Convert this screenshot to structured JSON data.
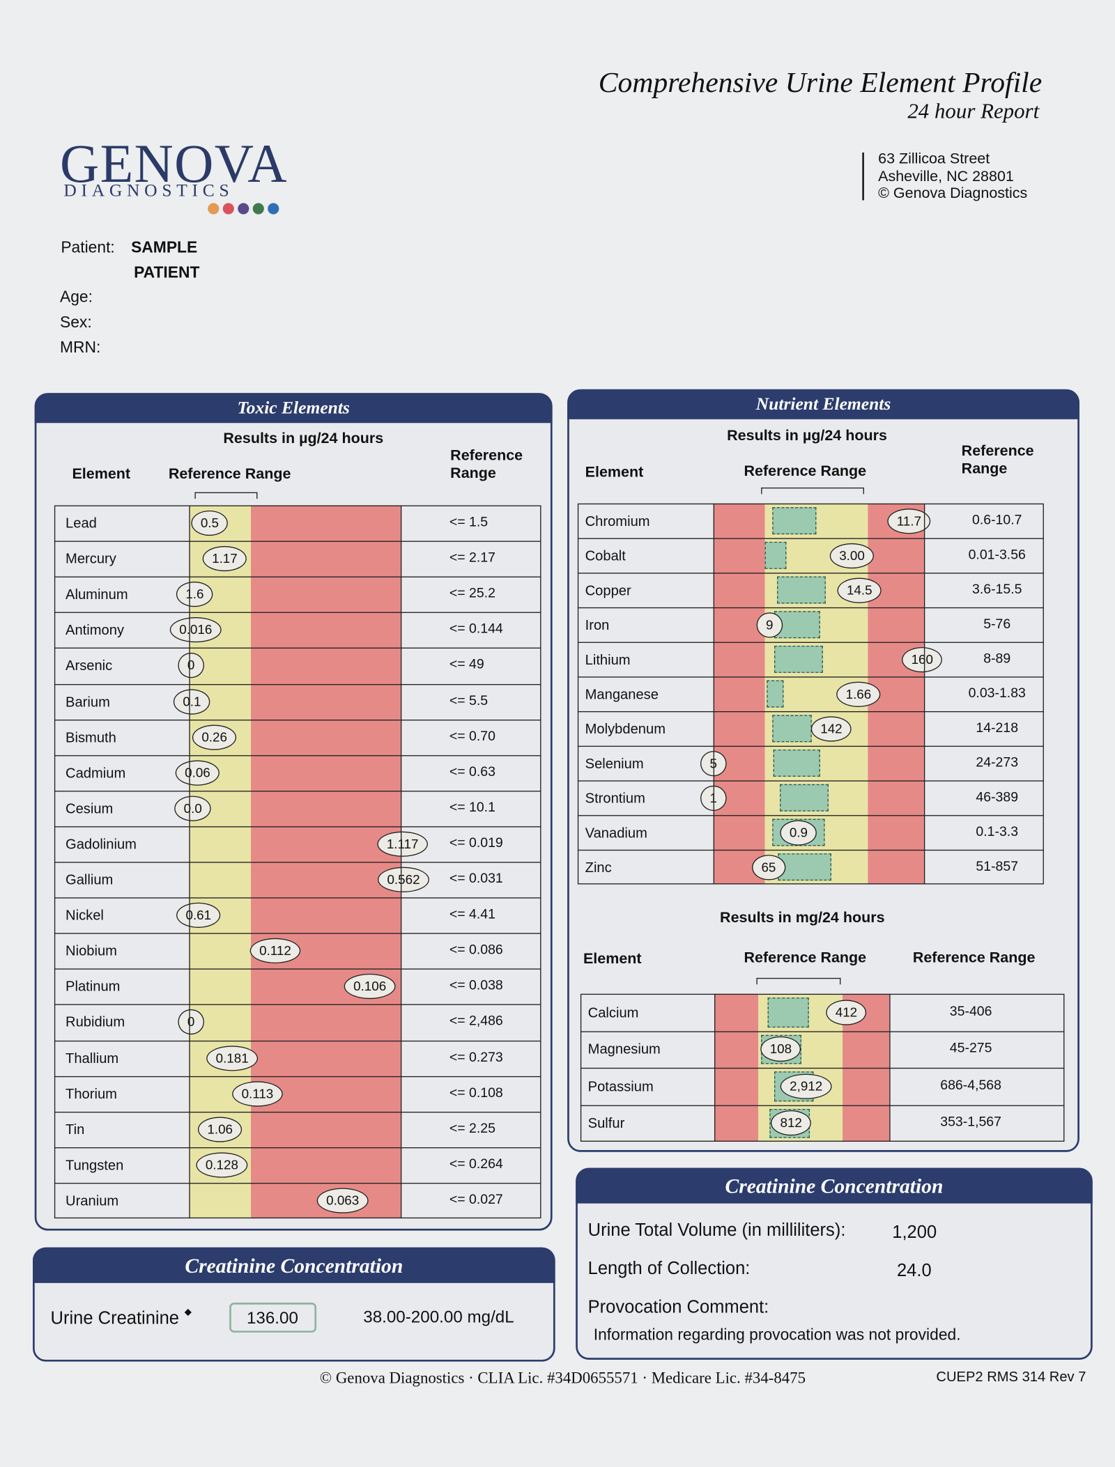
{
  "header": {
    "title": "Comprehensive Urine Element Profile",
    "subtitle": "24 hour Report",
    "logo": {
      "name": "GENOVA",
      "tagline": "DIAGNOSTICS"
    },
    "address": [
      "63 Zillicoa Street",
      "Asheville, NC  28801",
      "© Genova Diagnostics"
    ]
  },
  "patient": {
    "label": "Patient:",
    "name_lines": [
      "SAMPLE",
      "PATIENT"
    ],
    "fields": [
      "Age:",
      "Sex:",
      "MRN:"
    ]
  },
  "toxic": {
    "title": "Toxic Elements",
    "units": "Results in µg/24 hours",
    "columns": {
      "element": "Element",
      "range": "Reference Range",
      "reference": "Reference Range"
    },
    "rows": [
      {
        "element": "Lead",
        "result": "0.5",
        "reference": "<= 1.5"
      },
      {
        "element": "Mercury",
        "result": "1.17",
        "reference": "<= 2.17"
      },
      {
        "element": "Aluminum",
        "result": "1.6",
        "reference": "<= 25.2"
      },
      {
        "element": "Antimony",
        "result": "0.016",
        "reference": "<= 0.144"
      },
      {
        "element": "Arsenic",
        "result": "0",
        "reference": "<= 49"
      },
      {
        "element": "Barium",
        "result": "0.1",
        "reference": "<= 5.5"
      },
      {
        "element": "Bismuth",
        "result": "0.26",
        "reference": "<= 0.70"
      },
      {
        "element": "Cadmium",
        "result": "0.06",
        "reference": "<= 0.63"
      },
      {
        "element": "Cesium",
        "result": "0.0",
        "reference": "<= 10.1"
      },
      {
        "element": "Gadolinium",
        "result": "1.117",
        "reference": "<= 0.019"
      },
      {
        "element": "Gallium",
        "result": "0.562",
        "reference": "<= 0.031"
      },
      {
        "element": "Nickel",
        "result": "0.61",
        "reference": "<= 4.41"
      },
      {
        "element": "Niobium",
        "result": "0.112",
        "reference": "<= 0.086"
      },
      {
        "element": "Platinum",
        "result": "0.106",
        "reference": "<= 0.038"
      },
      {
        "element": "Rubidium",
        "result": "0",
        "reference": "<= 2,486"
      },
      {
        "element": "Thallium",
        "result": "0.181",
        "reference": "<= 0.273"
      },
      {
        "element": "Thorium",
        "result": "0.113",
        "reference": "<= 0.108"
      },
      {
        "element": "Tin",
        "result": "1.06",
        "reference": "<= 2.25"
      },
      {
        "element": "Tungsten",
        "result": "0.128",
        "reference": "<= 0.264"
      },
      {
        "element": "Uranium",
        "result": "0.063",
        "reference": "<= 0.027"
      }
    ]
  },
  "nutrient": {
    "title": "Nutrient Elements",
    "units": "Results in µg/24 hours",
    "columns": {
      "element": "Element",
      "range": "Reference Range",
      "reference": "Reference Range"
    },
    "rows": [
      {
        "element": "Chromium",
        "result": "11.7",
        "reference": "0.6-10.7"
      },
      {
        "element": "Cobalt",
        "result": "3.00",
        "reference": "0.01-3.56"
      },
      {
        "element": "Copper",
        "result": "14.5",
        "reference": "3.6-15.5"
      },
      {
        "element": "Iron",
        "result": "9",
        "reference": "5-76"
      },
      {
        "element": "Lithium",
        "result": "160",
        "reference": "8-89"
      },
      {
        "element": "Manganese",
        "result": "1.66",
        "reference": "0.03-1.83"
      },
      {
        "element": "Molybdenum",
        "result": "142",
        "reference": "14-218"
      },
      {
        "element": "Selenium",
        "result": "5",
        "reference": "24-273"
      },
      {
        "element": "Strontium",
        "result": "1",
        "reference": "46-389"
      },
      {
        "element": "Vanadium",
        "result": "0.9",
        "reference": "0.1-3.3"
      },
      {
        "element": "Zinc",
        "result": "65",
        "reference": "51-857"
      }
    ],
    "mg": {
      "units": "Results in mg/24 hours",
      "columns": {
        "element": "Element",
        "range": "Reference Range",
        "reference": "Reference Range"
      },
      "rows": [
        {
          "element": "Calcium",
          "result": "412",
          "reference": "35-406"
        },
        {
          "element": "Magnesium",
          "result": "108",
          "reference": "45-275"
        },
        {
          "element": "Potassium",
          "result": "2,912",
          "reference": "686-4,568"
        },
        {
          "element": "Sulfur",
          "result": "812",
          "reference": "353-1,567"
        }
      ]
    }
  },
  "creatinine_left": {
    "title": "Creatinine Concentration",
    "label": "Urine Creatinine",
    "mark": "◆",
    "value": "136.00",
    "range": "38.00-200.00 mg/dL"
  },
  "creatinine_right": {
    "title": "Creatinine Concentration",
    "items": [
      {
        "label": "Urine Total Volume (in milliliters):",
        "value": "1,200"
      },
      {
        "label": "Length of Collection:",
        "value": "24.0"
      }
    ],
    "comment_label": "Provocation Comment:",
    "comment": "Information regarding provocation was not provided."
  },
  "footer": {
    "text": "© Genova Diagnostics · CLIA Lic. #34D0655571 · Medicare Lic. #34-8475",
    "code": "CUEP2 RMS 314 Rev 7"
  }
}
